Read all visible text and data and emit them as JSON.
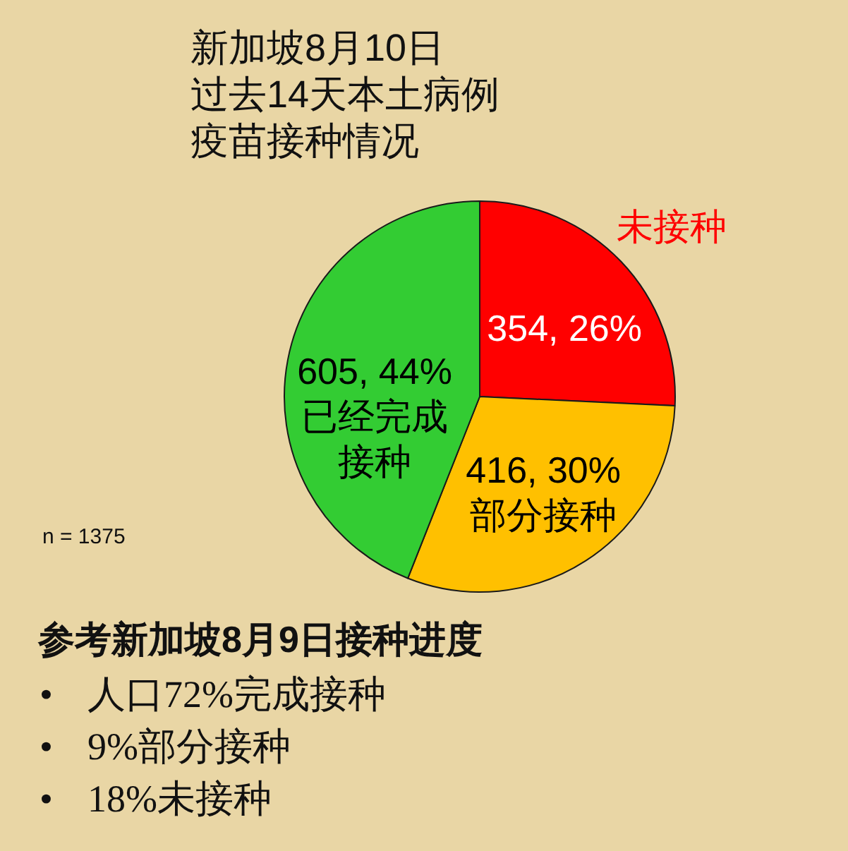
{
  "chart_data": {
    "type": "pie",
    "title": "新加坡8月10日",
    "subtitle": "过去14天本土病例疫苗接种情况",
    "categories": [
      "未接种",
      "部分接种",
      "已经完成接种"
    ],
    "values": [
      354,
      416,
      605
    ],
    "value_labels": [
      "354, 26%",
      "416, 30%",
      "605, 44%"
    ],
    "colors": [
      "#ff0000",
      "#ffc000",
      "#33cc33"
    ],
    "annotations": [
      "n = 1375",
      "参考新加坡8月9日接种进度",
      "• 人口72%完成接种",
      "• 9%部分接种",
      "• 18%未接种"
    ]
  }
}
